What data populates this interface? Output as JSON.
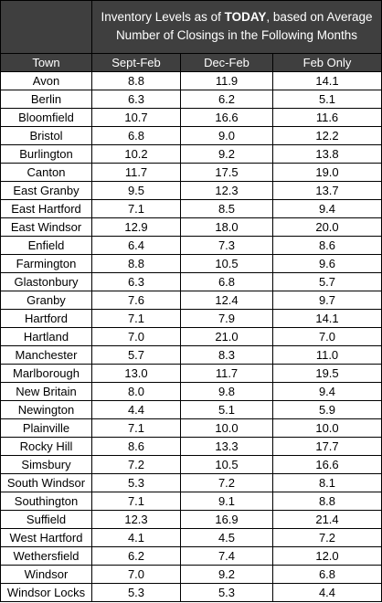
{
  "header": {
    "title_before": "Inventory Levels as of ",
    "title_emphasis": "TODAY",
    "title_after": ", based on Average Number of Closings in the Following Months"
  },
  "table": {
    "columns": [
      "Town",
      "Sept-Feb",
      "Dec-Feb",
      "Feb Only"
    ],
    "rows": [
      [
        "Avon",
        "8.8",
        "11.9",
        "14.1"
      ],
      [
        "Berlin",
        "6.3",
        "6.2",
        "5.1"
      ],
      [
        "Bloomfield",
        "10.7",
        "16.6",
        "11.6"
      ],
      [
        "Bristol",
        "6.8",
        "9.0",
        "12.2"
      ],
      [
        "Burlington",
        "10.2",
        "9.2",
        "13.8"
      ],
      [
        "Canton",
        "11.7",
        "17.5",
        "19.0"
      ],
      [
        "East Granby",
        "9.5",
        "12.3",
        "13.7"
      ],
      [
        "East Hartford",
        "7.1",
        "8.5",
        "9.4"
      ],
      [
        "East Windsor",
        "12.9",
        "18.0",
        "20.0"
      ],
      [
        "Enfield",
        "6.4",
        "7.3",
        "8.6"
      ],
      [
        "Farmington",
        "8.8",
        "10.5",
        "9.6"
      ],
      [
        "Glastonbury",
        "6.3",
        "6.8",
        "5.7"
      ],
      [
        "Granby",
        "7.6",
        "12.4",
        "9.7"
      ],
      [
        "Hartford",
        "7.1",
        "7.9",
        "14.1"
      ],
      [
        "Hartland",
        "7.0",
        "21.0",
        "7.0"
      ],
      [
        "Manchester",
        "5.7",
        "8.3",
        "11.0"
      ],
      [
        "Marlborough",
        "13.0",
        "11.7",
        "19.5"
      ],
      [
        "New Britain",
        "8.0",
        "9.8",
        "9.4"
      ],
      [
        "Newington",
        "4.4",
        "5.1",
        "5.9"
      ],
      [
        "Plainville",
        "7.1",
        "10.0",
        "10.0"
      ],
      [
        "Rocky Hill",
        "8.6",
        "13.3",
        "17.7"
      ],
      [
        "Simsbury",
        "7.2",
        "10.5",
        "16.6"
      ],
      [
        "South Windsor",
        "5.3",
        "7.2",
        "8.1"
      ],
      [
        "Southington",
        "7.1",
        "9.1",
        "8.8"
      ],
      [
        "Suffield",
        "12.3",
        "16.9",
        "21.4"
      ],
      [
        "West Hartford",
        "4.1",
        "4.5",
        "7.2"
      ],
      [
        "Wethersfield",
        "6.2",
        "7.4",
        "12.0"
      ],
      [
        "Windsor",
        "7.0",
        "9.2",
        "6.8"
      ],
      [
        "Windsor Locks",
        "5.3",
        "5.3",
        "4.4"
      ]
    ]
  }
}
